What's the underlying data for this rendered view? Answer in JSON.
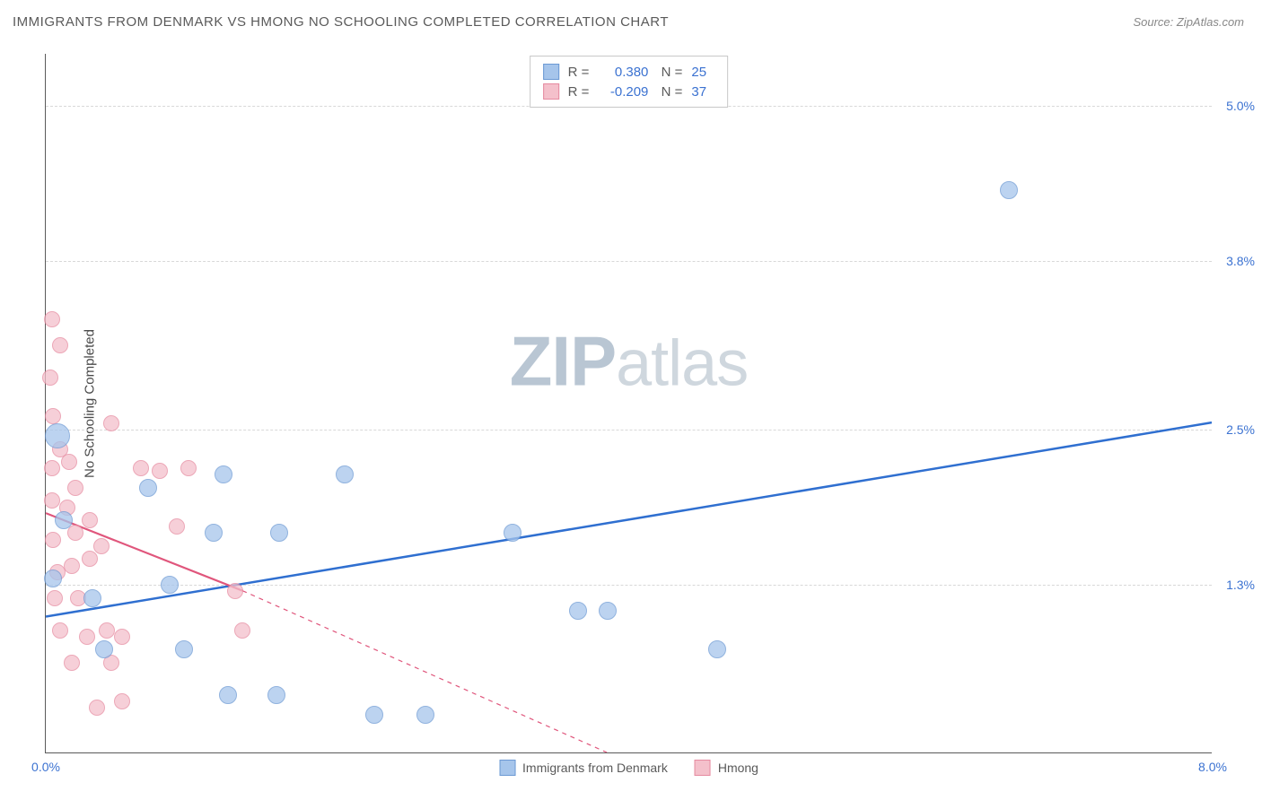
{
  "header": {
    "title": "IMMIGRANTS FROM DENMARK VS HMONG NO SCHOOLING COMPLETED CORRELATION CHART",
    "source": "Source: ZipAtlas.com"
  },
  "chart": {
    "type": "scatter",
    "ylabel": "No Schooling Completed",
    "watermark_bold": "ZIP",
    "watermark_rest": "atlas",
    "background_color": "#ffffff",
    "grid_color": "#d8d8d8",
    "axis_color": "#5a5a5a",
    "tick_color": "#3b72d1",
    "xlim": [
      0.0,
      8.0
    ],
    "ylim": [
      0.0,
      5.4
    ],
    "xticks": [
      {
        "value": 0.0,
        "label": "0.0%"
      },
      {
        "value": 8.0,
        "label": "8.0%"
      }
    ],
    "yticks": [
      {
        "value": 1.3,
        "label": "1.3%"
      },
      {
        "value": 2.5,
        "label": "2.5%"
      },
      {
        "value": 3.8,
        "label": "3.8%"
      },
      {
        "value": 5.0,
        "label": "5.0%"
      }
    ],
    "series": {
      "blue": {
        "label": "Immigrants from Denmark",
        "r_value": "0.380",
        "n_value": "25",
        "fill_color": "#a6c5eb",
        "stroke_color": "#6c99d4",
        "marker_radius": 10,
        "marker_opacity": 0.75,
        "line_color": "#2f6fd0",
        "line_width": 2.5,
        "trend": {
          "x1": 0.0,
          "y1": 1.05,
          "x2": 8.0,
          "y2": 2.55
        },
        "points": [
          {
            "x": 0.08,
            "y": 2.45,
            "r": 14
          },
          {
            "x": 0.05,
            "y": 1.35
          },
          {
            "x": 0.7,
            "y": 2.05
          },
          {
            "x": 0.85,
            "y": 1.3
          },
          {
            "x": 0.4,
            "y": 0.8
          },
          {
            "x": 0.95,
            "y": 0.8
          },
          {
            "x": 1.15,
            "y": 1.7
          },
          {
            "x": 1.22,
            "y": 2.15
          },
          {
            "x": 1.25,
            "y": 0.45
          },
          {
            "x": 1.58,
            "y": 0.45
          },
          {
            "x": 1.6,
            "y": 1.7
          },
          {
            "x": 2.05,
            "y": 2.15
          },
          {
            "x": 2.25,
            "y": 0.3
          },
          {
            "x": 2.6,
            "y": 0.3
          },
          {
            "x": 3.2,
            "y": 1.7
          },
          {
            "x": 3.65,
            "y": 1.1
          },
          {
            "x": 3.85,
            "y": 1.1
          },
          {
            "x": 4.6,
            "y": 0.8
          },
          {
            "x": 6.6,
            "y": 4.35
          },
          {
            "x": 0.12,
            "y": 1.8
          },
          {
            "x": 0.32,
            "y": 1.2
          }
        ]
      },
      "pink": {
        "label": "Hmong",
        "r_value": "-0.209",
        "n_value": "37",
        "fill_color": "#f4c0cb",
        "stroke_color": "#e68aa0",
        "marker_radius": 9,
        "marker_opacity": 0.75,
        "line_color": "#e0567c",
        "line_width": 2.2,
        "trend_solid": {
          "x1": 0.0,
          "y1": 1.85,
          "x2": 1.35,
          "y2": 1.25
        },
        "trend_dashed": {
          "x1": 1.35,
          "y1": 1.25,
          "x2": 3.85,
          "y2": 0.0
        },
        "points": [
          {
            "x": 0.04,
            "y": 3.35
          },
          {
            "x": 0.1,
            "y": 3.15
          },
          {
            "x": 0.03,
            "y": 2.9
          },
          {
            "x": 0.05,
            "y": 2.6
          },
          {
            "x": 0.1,
            "y": 2.35
          },
          {
            "x": 0.04,
            "y": 2.2
          },
          {
            "x": 0.16,
            "y": 2.25
          },
          {
            "x": 0.04,
            "y": 1.95
          },
          {
            "x": 0.15,
            "y": 1.9
          },
          {
            "x": 0.2,
            "y": 2.05
          },
          {
            "x": 0.05,
            "y": 1.65
          },
          {
            "x": 0.2,
            "y": 1.7
          },
          {
            "x": 0.3,
            "y": 1.8
          },
          {
            "x": 0.08,
            "y": 1.4
          },
          {
            "x": 0.18,
            "y": 1.45
          },
          {
            "x": 0.3,
            "y": 1.5
          },
          {
            "x": 0.38,
            "y": 1.6
          },
          {
            "x": 0.06,
            "y": 1.2
          },
          {
            "x": 0.22,
            "y": 1.2
          },
          {
            "x": 0.1,
            "y": 0.95
          },
          {
            "x": 0.28,
            "y": 0.9
          },
          {
            "x": 0.42,
            "y": 0.95
          },
          {
            "x": 0.52,
            "y": 0.9
          },
          {
            "x": 0.18,
            "y": 0.7
          },
          {
            "x": 0.45,
            "y": 0.7
          },
          {
            "x": 0.35,
            "y": 0.35
          },
          {
            "x": 0.52,
            "y": 0.4
          },
          {
            "x": 0.45,
            "y": 2.55
          },
          {
            "x": 0.65,
            "y": 2.2
          },
          {
            "x": 0.78,
            "y": 2.18
          },
          {
            "x": 0.98,
            "y": 2.2
          },
          {
            "x": 0.9,
            "y": 1.75
          },
          {
            "x": 1.3,
            "y": 1.25
          },
          {
            "x": 1.35,
            "y": 0.95
          }
        ]
      }
    },
    "bottom_legend_order": [
      "blue",
      "pink"
    ],
    "legend_text_color": "#5a5a5a"
  }
}
